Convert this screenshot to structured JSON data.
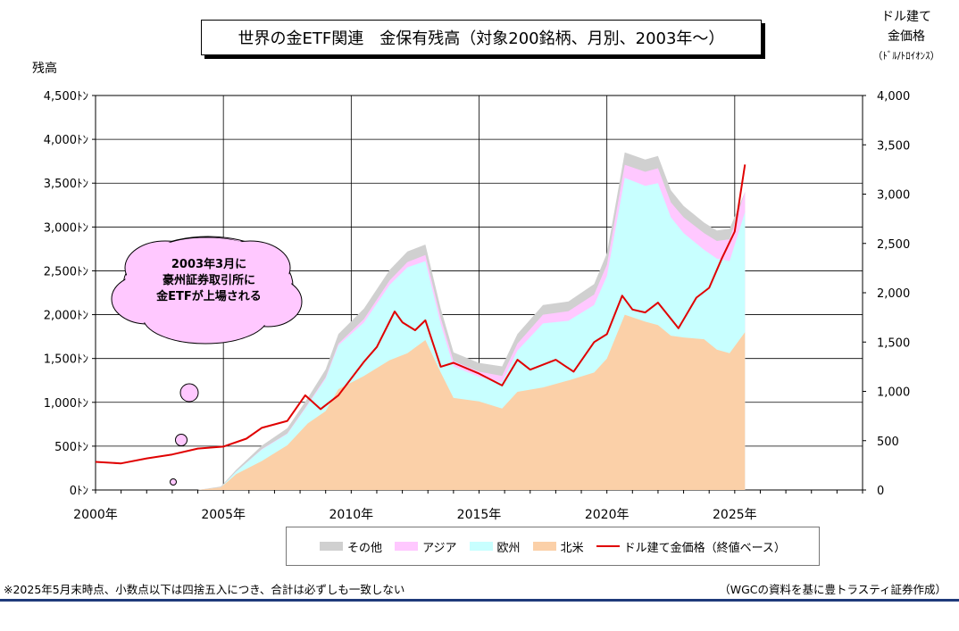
{
  "title": "世界の金ETF関連　金保有残高（対象200銘柄、月別、2003年～）",
  "left_axis_label": "残高",
  "right_axis_label_line1": "ドル建て",
  "right_axis_label_line2": "金価格",
  "right_axis_unit": "（ﾄﾞﾙ/ﾄﾛｲｵﾝｽ）",
  "callout_lines": [
    "2003年3月に",
    "豪州証券取引所に",
    "金ETFが上場される"
  ],
  "footnote": "※2025年5月末時点、小数点以下は四捨五入につき、合計は必ずしも一致しない",
  "source": "（WGCの資料を基に豊トラスティ証券作成）",
  "colors": {
    "other": "#d0d0d0",
    "asia": "#ffc8ff",
    "europe": "#c8ffff",
    "north_america": "#fbd0a8",
    "price": "#e00000",
    "bubble": "#ffc8ff"
  },
  "chart_data": {
    "type": "area",
    "x_label": "",
    "x_ticks": [
      "2000年",
      "2005年",
      "2010年",
      "2015年",
      "2020年",
      "2025年"
    ],
    "x_range": [
      2000,
      2030
    ],
    "y_left": {
      "label": "残高",
      "unit": "ﾄﾝ",
      "range": [
        0,
        4500
      ],
      "ticks": [
        "0ﾄﾝ",
        "500ﾄﾝ",
        "1,000ﾄﾝ",
        "1,500ﾄﾝ",
        "2,000ﾄﾝ",
        "2,500ﾄﾝ",
        "3,000ﾄﾝ",
        "3,500ﾄﾝ",
        "4,000ﾄﾝ",
        "4,500ﾄﾝ"
      ]
    },
    "y_right": {
      "label": "ドル建て金価格",
      "unit": "ﾄﾞﾙ/ﾄﾛｲｵﾝｽ",
      "range": [
        0,
        4000
      ],
      "ticks": [
        "0",
        "500",
        "1,000",
        "1,500",
        "2,000",
        "2,500",
        "3,000",
        "3,500",
        "4,000"
      ]
    },
    "grid": true,
    "legend_position": "bottom",
    "x": [
      2003.2,
      2004.0,
      2004.9,
      2005.5,
      2006.5,
      2007.5,
      2008.3,
      2009.0,
      2009.5,
      2010.5,
      2011.5,
      2012.2,
      2012.9,
      2013.5,
      2014.0,
      2015.0,
      2015.9,
      2016.5,
      2017.5,
      2018.5,
      2019.5,
      2020.0,
      2020.7,
      2021.5,
      2022.0,
      2022.5,
      2023.0,
      2023.8,
      2024.3,
      2024.8,
      2025.4
    ],
    "series": [
      {
        "name": "北米",
        "values": [
          0,
          0,
          30,
          180,
          330,
          510,
          760,
          900,
          1150,
          1300,
          1480,
          1560,
          1710,
          1340,
          1050,
          1010,
          930,
          1120,
          1170,
          1250,
          1340,
          1500,
          2000,
          1920,
          1880,
          1760,
          1740,
          1720,
          1600,
          1560,
          1800
        ]
      },
      {
        "name": "欧州",
        "values": [
          0,
          0,
          0,
          30,
          130,
          130,
          210,
          370,
          500,
          610,
          860,
          980,
          900,
          550,
          360,
          280,
          300,
          470,
          730,
          680,
          770,
          940,
          1560,
          1550,
          1620,
          1350,
          1190,
          1020,
          1040,
          1050,
          1370
        ]
      },
      {
        "name": "アジア",
        "values": [
          0,
          0,
          0,
          0,
          5,
          5,
          10,
          15,
          20,
          40,
          50,
          60,
          70,
          70,
          60,
          60,
          70,
          80,
          100,
          110,
          120,
          130,
          150,
          160,
          170,
          170,
          180,
          190,
          200,
          250,
          230
        ]
      },
      {
        "name": "その他",
        "values": [
          0,
          0,
          10,
          20,
          40,
          60,
          70,
          90,
          110,
          120,
          120,
          120,
          120,
          110,
          100,
          100,
          110,
          110,
          110,
          110,
          120,
          130,
          140,
          140,
          140,
          140,
          130,
          120,
          120,
          120,
          0
        ]
      }
    ],
    "price_line": {
      "name": "ドル建て金価格（終値ベース）",
      "x": [
        2000.0,
        2001.0,
        2002.0,
        2003.0,
        2004.0,
        2005.0,
        2005.9,
        2006.5,
        2007.5,
        2008.2,
        2008.8,
        2009.5,
        2010.5,
        2011.0,
        2011.7,
        2012.0,
        2012.5,
        2012.9,
        2013.5,
        2014.0,
        2015.0,
        2015.9,
        2016.5,
        2017.0,
        2018.0,
        2018.7,
        2019.5,
        2020.0,
        2020.6,
        2021.0,
        2021.5,
        2022.0,
        2022.8,
        2023.5,
        2024.0,
        2024.5,
        2025.0,
        2025.4
      ],
      "values": [
        285,
        270,
        320,
        360,
        420,
        440,
        520,
        630,
        700,
        960,
        820,
        960,
        1300,
        1450,
        1810,
        1700,
        1620,
        1720,
        1250,
        1290,
        1180,
        1060,
        1320,
        1220,
        1320,
        1200,
        1500,
        1580,
        1970,
        1830,
        1800,
        1900,
        1640,
        1950,
        2050,
        2350,
        2620,
        3300
      ]
    }
  }
}
